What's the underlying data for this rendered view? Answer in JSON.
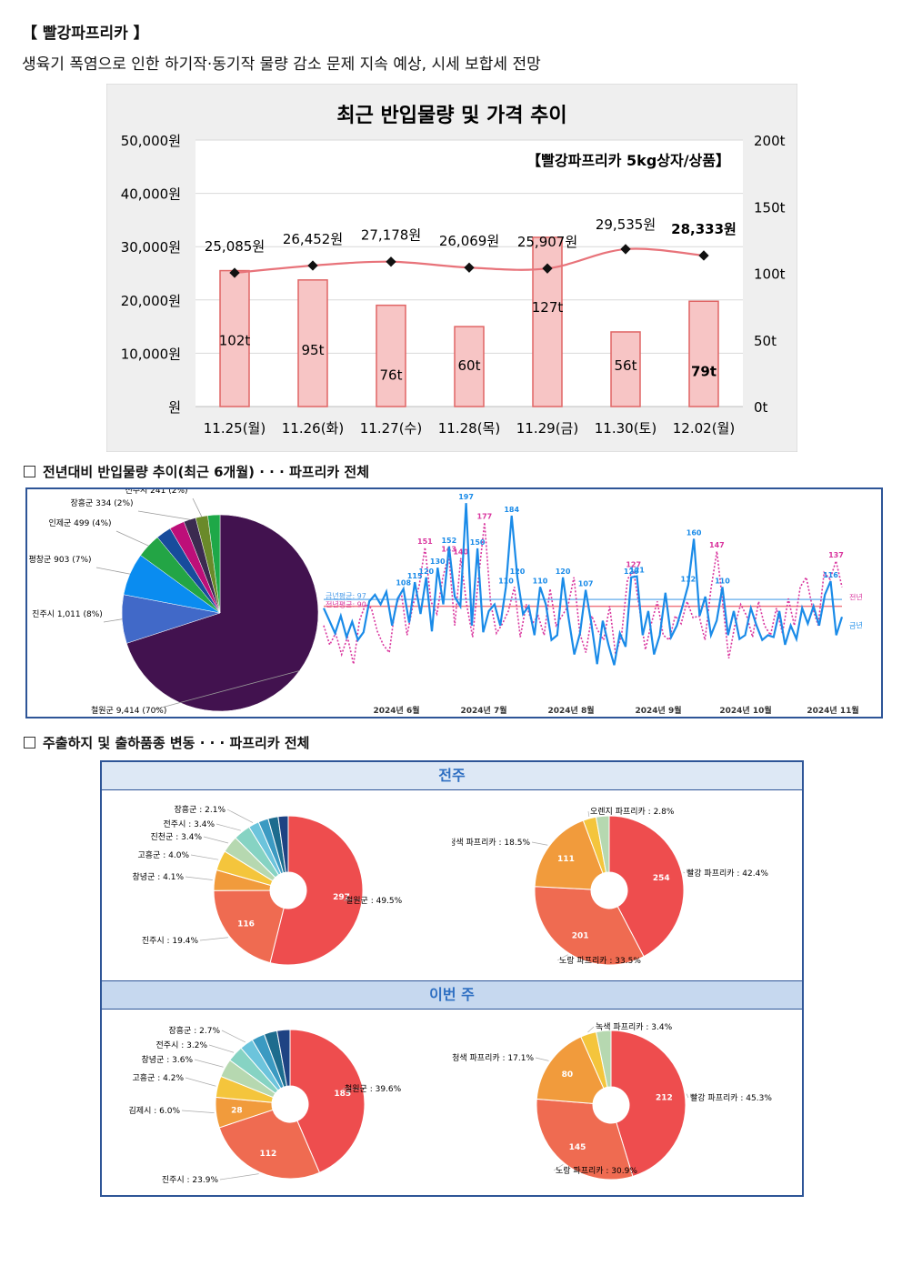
{
  "header": {
    "title": "【 빨강파프리카 】",
    "subtitle": "생육기 폭염으로 인한 하기작·동기작 물량 감소 문제 지속 예상, 시세 보합세 전망"
  },
  "sections": {
    "trend": "전년대비 반입물량 추이(최근 6개월) · · · 파프리카 전체",
    "origin": "주출하지 및 출하품종 변동 · · · 파프리카 전체"
  },
  "chart_data": [
    {
      "type": "bar",
      "title": "최근 반입물량 및 가격 추이",
      "subtitle": "【빨강파프리카 5kg상자/상품】",
      "categories": [
        "11.25(월)",
        "11.26(화)",
        "11.27(수)",
        "11.28(목)",
        "11.29(금)",
        "11.30(토)",
        "12.02(월)"
      ],
      "series": [
        {
          "kind": "bar",
          "axis": "right",
          "values": [
            102,
            95,
            76,
            60,
            127,
            56,
            79
          ],
          "labels": [
            "102t",
            "95t",
            "76t",
            "60t",
            "127t",
            "56t",
            "79t"
          ]
        },
        {
          "kind": "line",
          "axis": "left",
          "values": [
            25085,
            26452,
            27178,
            26069,
            25907,
            29535,
            28333
          ],
          "labels": [
            "25,085원",
            "26,452원",
            "27,178원",
            "26,069원",
            "25,907원",
            "29,535원",
            "28,333원"
          ]
        }
      ],
      "left_axis": {
        "min": 0,
        "max": 50000,
        "ticks": [
          "원",
          "10,000원",
          "20,000원",
          "30,000원",
          "40,000원",
          "50,000원"
        ]
      },
      "right_axis": {
        "min": 0,
        "max": 200,
        "ticks": [
          "0t",
          "50t",
          "100t",
          "150t",
          "200t"
        ]
      },
      "colors": {
        "bar_fill": "#f7c5c5",
        "bar_stroke": "#e06565",
        "line": "#e8737a"
      }
    },
    {
      "type": "pie",
      "slices": [
        {
          "label": "철원군 9,414 (70%)",
          "value": 70,
          "color": "#42124f"
        },
        {
          "label": "진주시 1,011 (8%)",
          "value": 8,
          "color": "#4169c8"
        },
        {
          "label": "평창군 903 (7%)",
          "value": 7,
          "color": "#0a8cf0"
        },
        {
          "label": "인제군 499 (4%)",
          "value": 4,
          "color": "#23a545"
        },
        {
          "label": "",
          "value": 2.5,
          "color": "#174c9c"
        },
        {
          "label": "",
          "value": 2.5,
          "color": "#bd0f79"
        },
        {
          "label": "장흥군 334 (2%)",
          "value": 2,
          "color": "#3b2b50"
        },
        {
          "label": "전주시 241 (2%)",
          "value": 2,
          "color": "#6a8a2a"
        },
        {
          "label": "",
          "value": 2,
          "color": "#1ea848"
        }
      ]
    },
    {
      "type": "line",
      "x_ticks": [
        "2024년 6월",
        "2024년 7월",
        "2024년 8월",
        "2024년 9월",
        "2024년 10월",
        "2024년 11월"
      ],
      "legend": [
        "전년",
        "금년"
      ],
      "avg_labels": [
        "금년평균: 97",
        "전년평균: 90"
      ],
      "ylim": [
        0,
        200
      ],
      "series": [
        {
          "name": "금년",
          "color": "#1a8be8",
          "style": "solid",
          "values": [
            88,
            75,
            62,
            80,
            58,
            74,
            55,
            63,
            95,
            102,
            92,
            105,
            70,
            98,
            108,
            73,
            115,
            82,
            120,
            64,
            130,
            92,
            152,
            100,
            90,
            197,
            70,
            150,
            63,
            85,
            92,
            70,
            110,
            184,
            120,
            82,
            90,
            60,
            110,
            92,
            55,
            60,
            120,
            78,
            40,
            62,
            107,
            72,
            30,
            75,
            50,
            29,
            62,
            48,
            120,
            121,
            60,
            85,
            40,
            60,
            104,
            58,
            70,
            90,
            112,
            160,
            80,
            100,
            60,
            75,
            110,
            60,
            85,
            56,
            60,
            88,
            70,
            55,
            60,
            58,
            85,
            50,
            70,
            56,
            88,
            72,
            90,
            70,
            102,
            116,
            60,
            79
          ]
        },
        {
          "name": "전년",
          "color": "#d9369e",
          "style": "dotted",
          "values": [
            70,
            50,
            62,
            40,
            58,
            30,
            75,
            92,
            88,
            64,
            50,
            42,
            88,
            105,
            60,
            92,
            110,
            151,
            95,
            82,
            120,
            143,
            70,
            140,
            92,
            58,
            120,
            177,
            95,
            62,
            72,
            85,
            110,
            58,
            92,
            72,
            80,
            60,
            108,
            70,
            80,
            90,
            120,
            62,
            42,
            80,
            65,
            55,
            90,
            40,
            60,
            118,
            127,
            88,
            45,
            72,
            95,
            60,
            55,
            80,
            72,
            95,
            78,
            80,
            55,
            108,
            147,
            92,
            36,
            70,
            92,
            80,
            58,
            95,
            70,
            60,
            88,
            62,
            98,
            70,
            110,
            120,
            90,
            70,
            125,
            118,
            137,
            110
          ]
        }
      ]
    },
    {
      "type": "pie",
      "title": "전주",
      "slices": [
        {
          "label": "철원군 : 49.5%",
          "value": 297,
          "inner": "297",
          "color": "#ee4d4e"
        },
        {
          "label": "진주시 : 19.4%",
          "value": 116,
          "inner": "116",
          "color": "#ef6b51"
        },
        {
          "label": "창녕군 : 4.1%",
          "value": 24.6,
          "color": "#f19b3c"
        },
        {
          "label": "고흥군 : 4.0%",
          "value": 24,
          "color": "#f4c53c"
        },
        {
          "label": "진천군 : 3.4%",
          "value": 20.4,
          "color": "#b6d8b0"
        },
        {
          "label": "전주시 : 3.4%",
          "value": 20.4,
          "color": "#86d3c3"
        },
        {
          "label": "장흥군 : 2.1%",
          "value": 12.6,
          "color": "#6cc4dc"
        },
        {
          "label": "",
          "value": 12,
          "color": "#3b9ac2"
        },
        {
          "label": "",
          "value": 12,
          "color": "#1d6c8e"
        },
        {
          "label": "",
          "value": 12,
          "color": "#1e4383"
        }
      ]
    },
    {
      "type": "pie",
      "title": "전주",
      "slices": [
        {
          "label": "빨강 파프리카 : 42.4%",
          "value": 254,
          "inner": "254",
          "color": "#ee4d4e"
        },
        {
          "label": "노랑 파프리카 : 33.5%",
          "value": 201,
          "inner": "201",
          "color": "#ef6b51"
        },
        {
          "label": "청색 파프리카 : 18.5%",
          "value": 111,
          "inner": "111",
          "color": "#f19b3c"
        },
        {
          "label": "오렌지 파프리카 : 2.8%",
          "value": 17,
          "color": "#f4c53c"
        },
        {
          "label": "",
          "value": 17,
          "color": "#b6d8b0"
        }
      ]
    },
    {
      "type": "pie",
      "title": "이번 주",
      "slices": [
        {
          "label": "철원군 : 39.6%",
          "value": 185,
          "inner": "185",
          "color": "#ee4d4e"
        },
        {
          "label": "진주시 : 23.9%",
          "value": 112,
          "inner": "112",
          "color": "#ef6b51"
        },
        {
          "label": "김제시 : 6.0%",
          "value": 28,
          "inner": "28",
          "color": "#f19b3c"
        },
        {
          "label": "고흥군 : 4.2%",
          "value": 19.6,
          "color": "#f4c53c"
        },
        {
          "label": "창녕군 : 3.6%",
          "value": 16.8,
          "color": "#b6d8b0"
        },
        {
          "label": "전주시 : 3.2%",
          "value": 15,
          "color": "#86d3c3"
        },
        {
          "label": "장흥군 : 2.7%",
          "value": 12.6,
          "color": "#6cc4dc"
        },
        {
          "label": "",
          "value": 12,
          "color": "#3b9ac2"
        },
        {
          "label": "",
          "value": 12,
          "color": "#1d6c8e"
        },
        {
          "label": "",
          "value": 12,
          "color": "#1e4383"
        }
      ]
    },
    {
      "type": "pie",
      "title": "이번 주",
      "slices": [
        {
          "label": "빨강 파프리카 : 45.3%",
          "value": 212,
          "inner": "212",
          "color": "#ee4d4e"
        },
        {
          "label": "노랑 파프리카 : 30.9%",
          "value": 145,
          "inner": "145",
          "color": "#ef6b51"
        },
        {
          "label": "청색 파프리카 : 17.1%",
          "value": 80,
          "inner": "80",
          "color": "#f19b3c"
        },
        {
          "label": "녹색 파프리카 : 3.4%",
          "value": 16,
          "color": "#f4c53c"
        },
        {
          "label": "",
          "value": 15,
          "color": "#b6d8b0"
        }
      ]
    }
  ]
}
